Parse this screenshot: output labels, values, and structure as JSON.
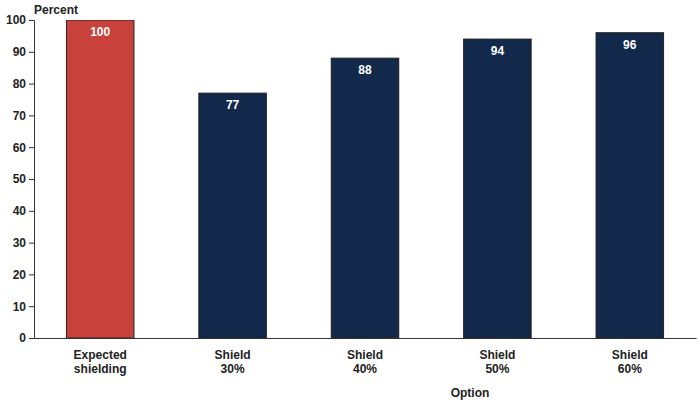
{
  "chart_data": {
    "type": "bar",
    "y_label": "Percent",
    "x_label": "Option",
    "categories": [
      "Expected shielding",
      "Shield 30%",
      "Shield 40%",
      "Shield 50%",
      "Shield 60%"
    ],
    "values": [
      100,
      77,
      88,
      94,
      96
    ],
    "colors": [
      "#c8413b",
      "#13294b",
      "#13294b",
      "#13294b",
      "#13294b"
    ],
    "ylim": [
      0,
      100
    ],
    "yticks": [
      0,
      10,
      20,
      30,
      40,
      50,
      60,
      70,
      80,
      90,
      100
    ],
    "grid": false,
    "data_labels": true
  }
}
